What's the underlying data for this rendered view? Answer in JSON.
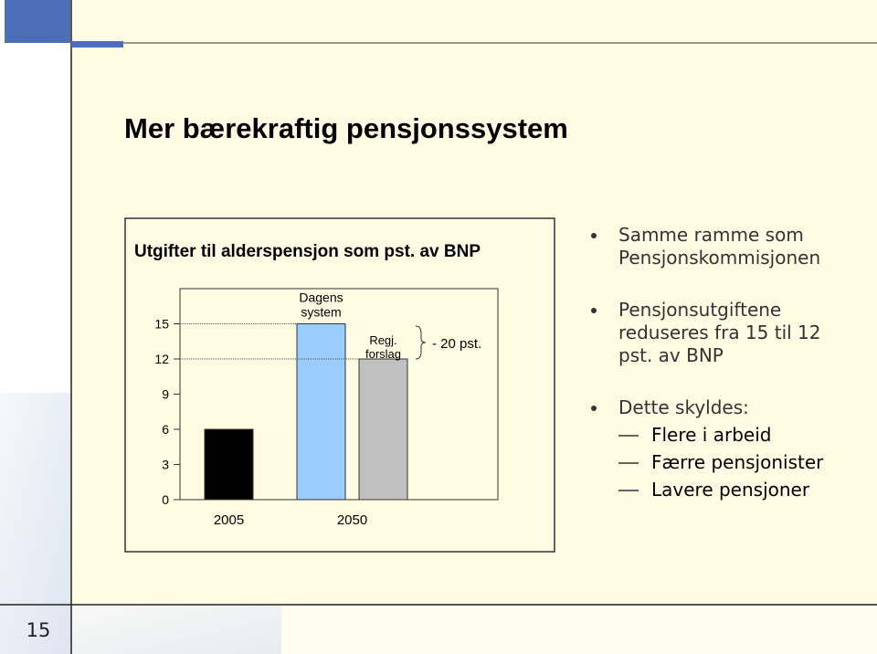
{
  "slide": {
    "title": "Mer bærekraftig pensjonssystem",
    "page_number": "15",
    "bullets": [
      {
        "lines": [
          "Samme ramme som",
          "Pensjonskommisjonen"
        ]
      },
      {
        "lines": [
          "Pensjonsutgiftene",
          "reduseres fra 15 til 12",
          "pst. av BNP"
        ]
      },
      {
        "lines": [
          "Dette skyldes:"
        ],
        "subitems": [
          "Flere i arbeid",
          "Færre pensjonister",
          "Lavere pensjoner"
        ]
      }
    ]
  },
  "chart_data": {
    "type": "bar",
    "title": "Utgifter til alderspensjon som pst. av BNP",
    "categories": [
      "2005",
      "2050"
    ],
    "bars": [
      {
        "category": 0,
        "value": 6,
        "color": "#000000"
      },
      {
        "category": 1,
        "label_lines": [
          "Dagens",
          "system"
        ],
        "value": 15,
        "color": "#99ccff"
      },
      {
        "category": 1,
        "label_lines": [
          "Regj.",
          "forslag"
        ],
        "value": 12,
        "color": "#c0c0c0"
      }
    ],
    "annotation": "- 20 pst.",
    "ylim": [
      0,
      18
    ],
    "yticks": [
      0,
      3,
      6,
      9,
      12,
      15
    ]
  }
}
